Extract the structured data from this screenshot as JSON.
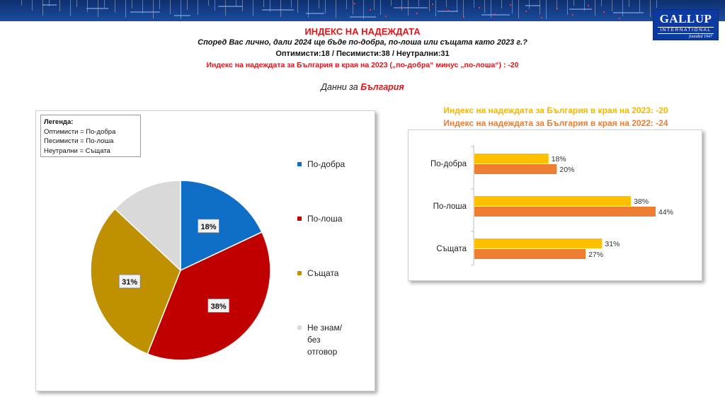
{
  "header": {
    "title": "ИНДЕКС НА НАДЕЖДАТА",
    "question": "Според Вас лично, дали 2024 ще бъде по-добра, по-лоша или същата като 2023 г.?",
    "summary": "Оптимисти:18 / Песимисти:38 / Неутрални:31",
    "index_line": "Индекс на надеждата за България в края на 2023 („по-добра“ минус „по-лоша“) : -20",
    "data_for_prefix": "Данни за",
    "data_for_country": "България"
  },
  "logo": {
    "name": "GALLUP",
    "sub": "INTERNATIONAL",
    "founded": "founded 1947"
  },
  "legend_box": {
    "title": "Легенда:",
    "lines": [
      "Оптимисти = По-добра",
      "Песимисти = По-лоша",
      "Неутрални = Същата"
    ]
  },
  "pie_legend": [
    {
      "label": "По-добра",
      "color": "#0f6fc6"
    },
    {
      "label": "По-лоша",
      "color": "#c00000"
    },
    {
      "label": "Същата",
      "color": "#bf9000"
    },
    {
      "label": "Не знам/без отговор",
      "color": "#d9d9d9"
    }
  ],
  "index_2023": "Индекс на надеждата за България в края на 2023: -20",
  "index_2022": "Индекс на надеждата за България в края на 2022: -24",
  "index_colors": {
    "2023": "#f5b800",
    "2022": "#ed7d31"
  },
  "chart_data": [
    {
      "type": "pie",
      "categories": [
        "По-добра",
        "По-лоша",
        "Същата",
        "Не знам/без отговор"
      ],
      "values": [
        18,
        38,
        31,
        13
      ],
      "data_labels": [
        "18%",
        "38%",
        "31%",
        ""
      ],
      "colors": [
        "#0f6fc6",
        "#c00000",
        "#bf9000",
        "#d9d9d9"
      ],
      "legend": "right"
    },
    {
      "type": "bar",
      "orientation": "horizontal",
      "categories": [
        "По-добра",
        "По-лоша",
        "Същата"
      ],
      "series": [
        {
          "values": [
            18,
            38,
            31
          ],
          "labels": [
            "18%",
            "38%",
            "31%"
          ],
          "color": "#ffc000"
        },
        {
          "values": [
            20,
            44,
            27
          ],
          "labels": [
            "20%",
            "44%",
            "27%"
          ],
          "color": "#ed7d31"
        }
      ],
      "xlim": [
        0,
        44
      ],
      "grid": false
    }
  ]
}
